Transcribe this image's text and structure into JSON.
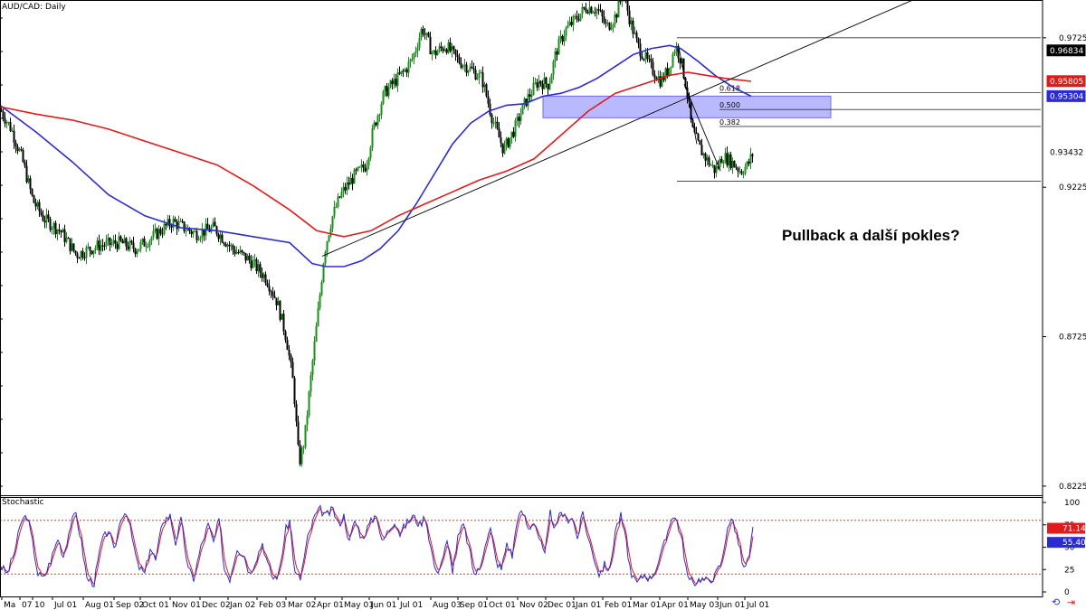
{
  "chart_data": {
    "type": "candlestick",
    "title": "AUD/CAD: Daily",
    "symbol": "AUD/CAD",
    "timeframe": "Daily",
    "price_axis": {
      "ylim": [
        0.8195,
        0.9852
      ],
      "tick_labels": [
        "0.97255",
        "0.92255",
        "0.87255",
        "0.82255"
      ],
      "tick_values": [
        0.97255,
        0.92255,
        0.87255,
        0.82255
      ]
    },
    "x_axis": {
      "tick_labels": [
        "Ma",
        "07",
        "10",
        "Jul 01",
        "Aug 01",
        "Sep 02",
        "Oct 01",
        "Nov 01",
        "Dec 02",
        "Jan 02",
        "Feb 03",
        "Mar 02",
        "Apr 01",
        "May 01",
        "Jun 01",
        "Jul 01",
        "Aug 03",
        "Sep 01",
        "Oct 01",
        "Nov 02",
        "Dec 01",
        "Jan 01",
        "Feb 01",
        "Mar 01",
        "Apr 01",
        "May 03",
        "Jun 01",
        "Jul 01"
      ]
    },
    "price_series": {
      "name": "AUD/CAD",
      "shape_points": [
        [
          0,
          0.9485
        ],
        [
          12,
          0.942
        ],
        [
          24,
          0.932
        ],
        [
          36,
          0.918
        ],
        [
          48,
          0.912
        ],
        [
          66,
          0.908
        ],
        [
          84,
          0.9
        ],
        [
          108,
          0.903
        ],
        [
          132,
          0.904
        ],
        [
          150,
          0.902
        ],
        [
          168,
          0.906
        ],
        [
          190,
          0.911
        ],
        [
          216,
          0.907
        ],
        [
          236,
          0.909
        ],
        [
          256,
          0.902
        ],
        [
          276,
          0.898
        ],
        [
          294,
          0.892
        ],
        [
          306,
          0.884
        ],
        [
          316,
          0.872
        ],
        [
          324,
          0.856
        ],
        [
          330,
          0.83
        ],
        [
          336,
          0.838
        ],
        [
          342,
          0.856
        ],
        [
          350,
          0.878
        ],
        [
          358,
          0.901
        ],
        [
          366,
          0.912
        ],
        [
          376,
          0.92
        ],
        [
          390,
          0.926
        ],
        [
          404,
          0.93
        ],
        [
          412,
          0.942
        ],
        [
          424,
          0.954
        ],
        [
          436,
          0.958
        ],
        [
          448,
          0.962
        ],
        [
          456,
          0.966
        ],
        [
          466,
          0.976
        ],
        [
          478,
          0.967
        ],
        [
          492,
          0.97
        ],
        [
          506,
          0.965
        ],
        [
          520,
          0.962
        ],
        [
          532,
          0.959
        ],
        [
          544,
          0.945
        ],
        [
          556,
          0.935
        ],
        [
          568,
          0.942
        ],
        [
          580,
          0.951
        ],
        [
          594,
          0.958
        ],
        [
          606,
          0.957
        ],
        [
          614,
          0.968
        ],
        [
          624,
          0.975
        ],
        [
          636,
          0.979
        ],
        [
          648,
          0.983
        ],
        [
          660,
          0.982
        ],
        [
          670,
          0.976
        ],
        [
          680,
          0.98
        ],
        [
          688,
          0.988
        ],
        [
          696,
          0.978
        ],
        [
          704,
          0.97
        ],
        [
          712,
          0.966
        ],
        [
          720,
          0.962
        ],
        [
          730,
          0.958
        ],
        [
          738,
          0.962
        ],
        [
          746,
          0.97
        ],
        [
          752,
          0.965
        ],
        [
          758,
          0.956
        ],
        [
          764,
          0.942
        ],
        [
          772,
          0.936
        ],
        [
          780,
          0.932
        ],
        [
          790,
          0.928
        ],
        [
          798,
          0.933
        ],
        [
          808,
          0.931
        ],
        [
          818,
          0.928
        ],
        [
          826,
          0.93
        ],
        [
          832,
          0.9343
        ]
      ]
    },
    "moving_averages": [
      {
        "color": "#2b2bd6",
        "points": [
          [
            0,
            0.95
          ],
          [
            40,
            0.941
          ],
          [
            80,
            0.931
          ],
          [
            120,
            0.92
          ],
          [
            160,
            0.913
          ],
          [
            200,
            0.909
          ],
          [
            240,
            0.908
          ],
          [
            280,
            0.906
          ],
          [
            320,
            0.904
          ],
          [
            345,
            0.897
          ],
          [
            360,
            0.896
          ],
          [
            380,
            0.896
          ],
          [
            400,
            0.898
          ],
          [
            420,
            0.902
          ],
          [
            440,
            0.908
          ],
          [
            460,
            0.917
          ],
          [
            480,
            0.927
          ],
          [
            500,
            0.937
          ],
          [
            520,
            0.944
          ],
          [
            540,
            0.948
          ],
          [
            560,
            0.95
          ],
          [
            580,
            0.9505
          ],
          [
            600,
            0.953
          ],
          [
            620,
            0.954
          ],
          [
            640,
            0.956
          ],
          [
            660,
            0.959
          ],
          [
            680,
            0.963
          ],
          [
            700,
            0.967
          ],
          [
            720,
            0.969
          ],
          [
            740,
            0.97
          ],
          [
            752,
            0.969
          ],
          [
            770,
            0.965
          ],
          [
            790,
            0.96
          ],
          [
            810,
            0.956
          ],
          [
            830,
            0.953
          ]
        ]
      },
      {
        "color": "#e01b1b",
        "points": [
          [
            0,
            0.9495
          ],
          [
            40,
            0.947
          ],
          [
            80,
            0.945
          ],
          [
            120,
            0.942
          ],
          [
            160,
            0.938
          ],
          [
            200,
            0.934
          ],
          [
            240,
            0.93
          ],
          [
            280,
            0.923
          ],
          [
            320,
            0.915
          ],
          [
            350,
            0.908
          ],
          [
            380,
            0.906
          ],
          [
            410,
            0.908
          ],
          [
            440,
            0.913
          ],
          [
            470,
            0.917
          ],
          [
            500,
            0.921
          ],
          [
            530,
            0.925
          ],
          [
            560,
            0.928
          ],
          [
            590,
            0.932
          ],
          [
            620,
            0.94
          ],
          [
            650,
            0.948
          ],
          [
            680,
            0.954
          ],
          [
            700,
            0.956
          ],
          [
            720,
            0.958
          ],
          [
            740,
            0.96
          ],
          [
            760,
            0.961
          ],
          [
            780,
            0.96
          ],
          [
            800,
            0.959
          ],
          [
            815,
            0.9585
          ],
          [
            830,
            0.958
          ]
        ]
      }
    ],
    "trendlines": [
      {
        "type": "rising",
        "points": [
          [
            356,
            0.8995
          ],
          [
            1030,
            0.988
          ]
        ]
      },
      {
        "type": "falling",
        "points": [
          [
            750,
            0.9695
          ],
          [
            770,
            0.937
          ]
        ]
      },
      {
        "type": "falling",
        "points": [
          [
            756,
            0.957
          ],
          [
            796,
            0.928
          ]
        ]
      }
    ],
    "fibonacci": {
      "high": 0.97255,
      "low": 0.92455,
      "start_x": 748,
      "label_x": 795,
      "end_x": 1150,
      "levels": [
        {
          "label": "0.618",
          "value": 0.95421
        },
        {
          "label": "0.500",
          "value": 0.94855
        },
        {
          "label": "0.382",
          "value": 0.94289
        }
      ]
    },
    "zone": {
      "top": 0.95304,
      "bottom": 0.9458,
      "x_start": 600,
      "x_end": 918,
      "color": "#8080ff"
    },
    "price_tags": [
      {
        "label": "0.96834",
        "value": 0.96834,
        "bg": "#000000",
        "fg": "#ffffff"
      },
      {
        "label": "0.95805",
        "value": 0.95805,
        "bg": "#e01b1b",
        "fg": "#ffffff"
      },
      {
        "label": "0.95304",
        "value": 0.95304,
        "bg": "#2b2bd6",
        "fg": "#ffffff"
      },
      {
        "label": "0.93432",
        "value": 0.93432,
        "bg": "#ffffff",
        "fg": "#000000"
      }
    ],
    "annotation": {
      "text": "Pullback a další pokles?"
    },
    "stochastic": {
      "title": "Stochastic",
      "ylim": [
        0,
        100
      ],
      "tick_labels": [
        "100",
        "75",
        "50",
        "25",
        "0"
      ],
      "tick_values": [
        100,
        75,
        50,
        25,
        0
      ],
      "levels": [
        80,
        20
      ],
      "level_color": "#e01b1b",
      "k_color": "#2b2bd6",
      "d_color": "#e01b1b",
      "tags": [
        {
          "label": "71.14",
          "value": 71.14,
          "bg": "#e01b1b",
          "fg": "#ffffff"
        },
        {
          "label": "55.40",
          "value": 55.4,
          "bg": "#2b2bd6",
          "fg": "#ffffff"
        }
      ],
      "shape_points": [
        [
          0,
          30
        ],
        [
          8,
          20
        ],
        [
          16,
          45
        ],
        [
          24,
          80
        ],
        [
          30,
          85
        ],
        [
          36,
          55
        ],
        [
          42,
          20
        ],
        [
          48,
          15
        ],
        [
          56,
          35
        ],
        [
          64,
          60
        ],
        [
          70,
          40
        ],
        [
          78,
          75
        ],
        [
          84,
          88
        ],
        [
          90,
          55
        ],
        [
          96,
          15
        ],
        [
          104,
          10
        ],
        [
          112,
          55
        ],
        [
          120,
          70
        ],
        [
          126,
          45
        ],
        [
          134,
          85
        ],
        [
          140,
          90
        ],
        [
          146,
          60
        ],
        [
          152,
          30
        ],
        [
          160,
          20
        ],
        [
          166,
          50
        ],
        [
          172,
          35
        ],
        [
          180,
          80
        ],
        [
          188,
          85
        ],
        [
          194,
          55
        ],
        [
          200,
          80
        ],
        [
          208,
          25
        ],
        [
          214,
          15
        ],
        [
          222,
          50
        ],
        [
          230,
          75
        ],
        [
          236,
          55
        ],
        [
          242,
          80
        ],
        [
          248,
          25
        ],
        [
          254,
          15
        ],
        [
          262,
          50
        ],
        [
          270,
          40
        ],
        [
          276,
          20
        ],
        [
          282,
          35
        ],
        [
          290,
          55
        ],
        [
          296,
          30
        ],
        [
          302,
          15
        ],
        [
          308,
          20
        ],
        [
          316,
          70
        ],
        [
          320,
          80
        ],
        [
          326,
          20
        ],
        [
          332,
          15
        ],
        [
          340,
          60
        ],
        [
          348,
          85
        ],
        [
          354,
          92
        ],
        [
          360,
          85
        ],
        [
          368,
          92
        ],
        [
          374,
          75
        ],
        [
          380,
          85
        ],
        [
          386,
          55
        ],
        [
          392,
          80
        ],
        [
          400,
          60
        ],
        [
          408,
          75
        ],
        [
          416,
          88
        ],
        [
          422,
          55
        ],
        [
          430,
          70
        ],
        [
          436,
          80
        ],
        [
          442,
          65
        ],
        [
          448,
          75
        ],
        [
          456,
          85
        ],
        [
          464,
          75
        ],
        [
          470,
          85
        ],
        [
          476,
          50
        ],
        [
          482,
          20
        ],
        [
          488,
          35
        ],
        [
          494,
          55
        ],
        [
          500,
          25
        ],
        [
          506,
          60
        ],
        [
          512,
          75
        ],
        [
          518,
          50
        ],
        [
          524,
          20
        ],
        [
          530,
          25
        ],
        [
          536,
          55
        ],
        [
          542,
          70
        ],
        [
          548,
          35
        ],
        [
          554,
          25
        ],
        [
          560,
          55
        ],
        [
          566,
          40
        ],
        [
          572,
          85
        ],
        [
          578,
          88
        ],
        [
          584,
          70
        ],
        [
          590,
          80
        ],
        [
          596,
          60
        ],
        [
          602,
          40
        ],
        [
          608,
          88
        ],
        [
          614,
          70
        ],
        [
          620,
          90
        ],
        [
          626,
          80
        ],
        [
          632,
          85
        ],
        [
          638,
          60
        ],
        [
          644,
          88
        ],
        [
          650,
          60
        ],
        [
          656,
          40
        ],
        [
          662,
          20
        ],
        [
          668,
          30
        ],
        [
          674,
          25
        ],
        [
          680,
          70
        ],
        [
          686,
          85
        ],
        [
          692,
          55
        ],
        [
          698,
          15
        ],
        [
          704,
          10
        ],
        [
          712,
          20
        ],
        [
          718,
          15
        ],
        [
          724,
          25
        ],
        [
          730,
          40
        ],
        [
          736,
          60
        ],
        [
          742,
          85
        ],
        [
          748,
          80
        ],
        [
          754,
          55
        ],
        [
          760,
          15
        ],
        [
          766,
          10
        ],
        [
          774,
          15
        ],
        [
          782,
          12
        ],
        [
          790,
          18
        ],
        [
          798,
          35
        ],
        [
          804,
          75
        ],
        [
          810,
          80
        ],
        [
          816,
          55
        ],
        [
          822,
          25
        ],
        [
          828,
          40
        ],
        [
          832,
          70
        ]
      ]
    }
  }
}
